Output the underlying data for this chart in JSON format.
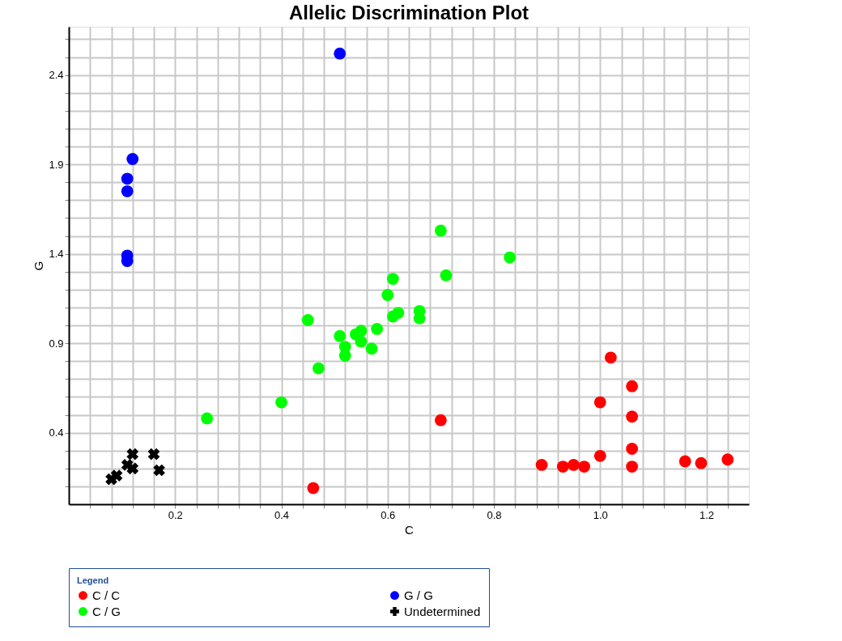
{
  "chart_data": {
    "type": "scatter",
    "title": "Allelic Discrimination Plot",
    "xlabel": "C",
    "ylabel": "G",
    "legend_title": "Legend",
    "legend": "bottom",
    "grid": true,
    "xlim": [
      0,
      1.28
    ],
    "ylim": [
      0,
      2.67
    ],
    "xticks": [
      {
        "value": 0.04,
        "label": null
      },
      {
        "value": 0.08,
        "label": null
      },
      {
        "value": 0.12,
        "label": null
      },
      {
        "value": 0.16,
        "label": null
      },
      0.2,
      {
        "value": 0.24,
        "label": null
      },
      {
        "value": 0.28,
        "label": null
      },
      {
        "value": 0.32,
        "label": null
      },
      {
        "value": 0.36,
        "label": null
      },
      0.4,
      {
        "value": 0.44,
        "label": null
      },
      {
        "value": 0.48,
        "label": null
      },
      {
        "value": 0.52,
        "label": null
      },
      {
        "value": 0.56,
        "label": null
      },
      0.6,
      {
        "value": 0.64,
        "label": null
      },
      {
        "value": 0.68,
        "label": null
      },
      {
        "value": 0.72,
        "label": null
      },
      {
        "value": 0.76,
        "label": null
      },
      0.8,
      {
        "value": 0.84,
        "label": null
      },
      {
        "value": 0.88,
        "label": null
      },
      {
        "value": 0.92,
        "label": null
      },
      {
        "value": 0.96,
        "label": null
      },
      {
        "value": 1.0,
        "label": "1.0"
      },
      {
        "value": 1.04,
        "label": null
      },
      {
        "value": 1.08,
        "label": null
      },
      {
        "value": 1.12,
        "label": null
      },
      {
        "value": 1.16,
        "label": null
      },
      1.2,
      {
        "value": 1.24,
        "label": null
      }
    ],
    "yticks": [
      {
        "value": 0.1,
        "label": null
      },
      {
        "value": 0.2,
        "label": null
      },
      {
        "value": 0.3,
        "label": null
      },
      0.4,
      {
        "value": 0.5,
        "label": null
      },
      {
        "value": 0.6,
        "label": null
      },
      {
        "value": 0.7,
        "label": null
      },
      {
        "value": 0.8,
        "label": null
      },
      0.9,
      {
        "value": 1.0,
        "label": null
      },
      {
        "value": 1.1,
        "label": null
      },
      {
        "value": 1.2,
        "label": null
      },
      {
        "value": 1.3,
        "label": null
      },
      1.4,
      {
        "value": 1.5,
        "label": null
      },
      {
        "value": 1.6,
        "label": null
      },
      {
        "value": 1.7,
        "label": null
      },
      {
        "value": 1.8,
        "label": null
      },
      1.9,
      {
        "value": 2.0,
        "label": null
      },
      {
        "value": 2.1,
        "label": null
      },
      {
        "value": 2.2,
        "label": null
      },
      {
        "value": 2.3,
        "label": null
      },
      2.4,
      {
        "value": 2.5,
        "label": null
      },
      {
        "value": 2.6,
        "label": null
      }
    ],
    "series": [
      {
        "name": "C / C",
        "color": "#ff0000",
        "marker": "circle",
        "x": [
          0.46,
          0.7,
          0.89,
          0.93,
          0.95,
          0.97,
          1.0,
          1.0,
          1.02,
          1.06,
          1.06,
          1.06,
          1.06,
          1.16,
          1.19,
          1.24
        ],
        "values": [
          0.09,
          0.47,
          0.22,
          0.21,
          0.22,
          0.21,
          0.27,
          0.57,
          0.82,
          0.66,
          0.49,
          0.31,
          0.21,
          0.24,
          0.23,
          0.25
        ]
      },
      {
        "name": "G / G",
        "color": "#0000ff",
        "marker": "circle",
        "x": [
          0.51,
          0.12,
          0.11,
          0.11,
          0.11,
          0.11
        ],
        "values": [
          2.52,
          1.93,
          1.82,
          1.75,
          1.39,
          1.36
        ]
      },
      {
        "name": "C / G",
        "color": "#00ff00",
        "marker": "circle",
        "x": [
          0.26,
          0.4,
          0.47,
          0.45,
          0.52,
          0.51,
          0.52,
          0.54,
          0.55,
          0.55,
          0.57,
          0.58,
          0.6,
          0.61,
          0.61,
          0.62,
          0.66,
          0.66,
          0.7,
          0.71,
          0.83
        ],
        "values": [
          0.48,
          0.57,
          0.76,
          1.03,
          0.83,
          0.94,
          0.88,
          0.95,
          0.91,
          0.97,
          0.87,
          0.98,
          1.17,
          1.26,
          1.05,
          1.07,
          1.04,
          1.08,
          1.53,
          1.28,
          1.38
        ]
      },
      {
        "name": "Undetermined",
        "color": "#000000",
        "marker": "cross",
        "x": [
          0.08,
          0.09,
          0.12,
          0.11,
          0.12,
          0.16,
          0.17
        ],
        "values": [
          0.14,
          0.16,
          0.28,
          0.22,
          0.2,
          0.28,
          0.19
        ]
      }
    ]
  }
}
